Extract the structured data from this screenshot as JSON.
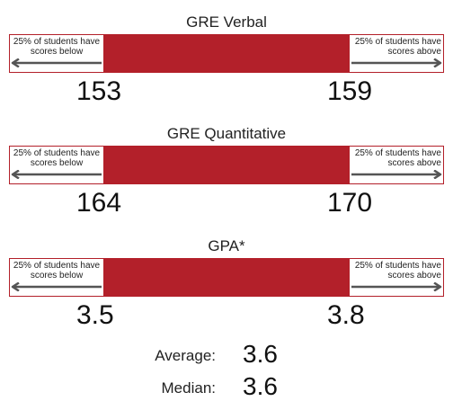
{
  "colors": {
    "bar": "#b3202a",
    "text": "#222222"
  },
  "chart_data": [
    {
      "type": "bar",
      "title": "GRE Verbal",
      "low": 153,
      "high": 159,
      "left_note": "25% of students have scores below",
      "right_note": "25% of students have scores above"
    },
    {
      "type": "bar",
      "title": "GRE Quantitative",
      "low": 164,
      "high": 170,
      "left_note": "25% of students have scores below",
      "right_note": "25% of students have scores above"
    },
    {
      "type": "bar",
      "title": "GPA*",
      "low": "3.5",
      "high": "3.8",
      "left_note": "25% of students have scores below",
      "right_note": "25% of students have scores above"
    }
  ],
  "stats": {
    "average_label": "Average:",
    "average_value": "3.6",
    "median_label": "Median:",
    "median_value": "3.6"
  }
}
